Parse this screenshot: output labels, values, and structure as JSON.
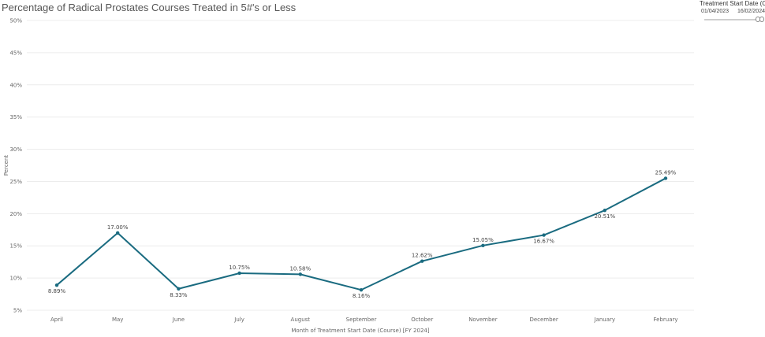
{
  "header": {
    "title": "Percentage of Radical Prostates Courses Treated in 5#'s or Less"
  },
  "filter": {
    "title": "Treatment Start Date (Co...",
    "start": "01/04/2023",
    "end": "16/02/2024"
  },
  "colors": {
    "line": "#1a6b80",
    "grid": "#ececec",
    "axis_text": "#666666"
  },
  "chart_data": {
    "type": "line",
    "title": "Percentage of Radical Prostates Courses Treated in 5#'s or Less",
    "xlabel": "Month of Treatment Start Date (Course) [FY 2024]",
    "ylabel": "Percent",
    "categories": [
      "April",
      "May",
      "June",
      "July",
      "August",
      "September",
      "October",
      "November",
      "December",
      "January",
      "February"
    ],
    "values": [
      8.89,
      17.0,
      8.33,
      10.75,
      10.58,
      8.16,
      12.62,
      15.05,
      16.67,
      20.51,
      25.49
    ],
    "data_labels": [
      "8.89%",
      "17.00%",
      "8.33%",
      "10.75%",
      "10.58%",
      "8.16%",
      "12.62%",
      "15.05%",
      "16.67%",
      "20.51%",
      "25.49%"
    ],
    "label_position": [
      "below",
      "above",
      "below",
      "above",
      "above",
      "below",
      "above",
      "above",
      "below",
      "below",
      "above"
    ],
    "yticks": [
      5,
      10,
      15,
      20,
      25,
      30,
      35,
      40,
      45,
      50
    ],
    "ytick_labels": [
      "5%",
      "10%",
      "15%",
      "20%",
      "25%",
      "30%",
      "35%",
      "40%",
      "45%",
      "50%"
    ],
    "ylim": [
      5,
      50
    ],
    "grid": true
  }
}
